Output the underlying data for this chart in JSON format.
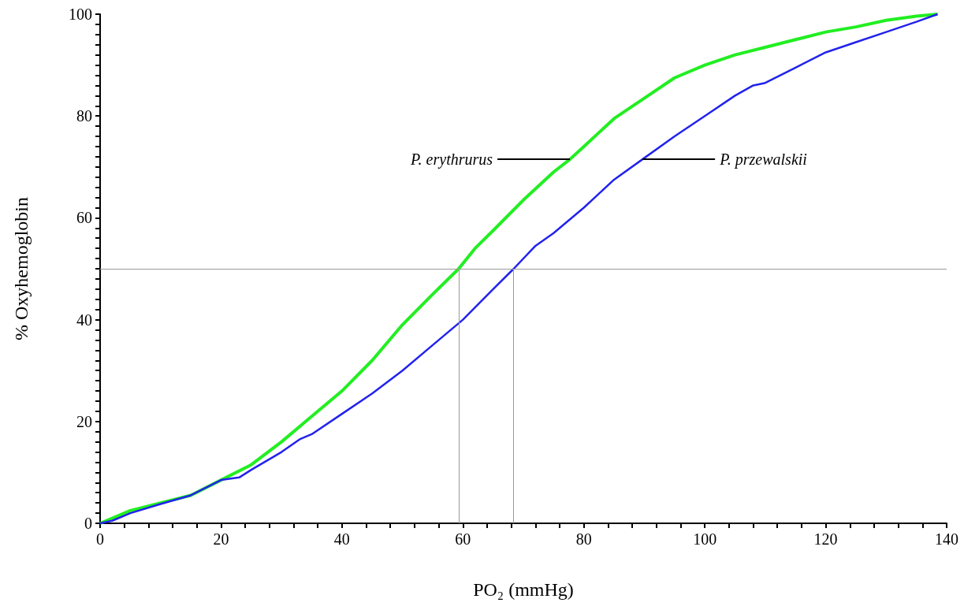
{
  "chart_data": {
    "type": "line",
    "xlabel": "PO₂ (mmHg)",
    "ylabel": "% Oxyhemoglobin",
    "xlim": [
      0,
      140
    ],
    "ylim": [
      0,
      100
    ],
    "xticks": [
      0,
      {
        "value": 4,
        "label": null
      },
      {
        "value": 8,
        "label": null
      },
      {
        "value": 12,
        "label": null
      },
      {
        "value": 16,
        "label": null
      },
      20,
      {
        "value": 24,
        "label": null
      },
      {
        "value": 28,
        "label": null
      },
      {
        "value": 32,
        "label": null
      },
      {
        "value": 36,
        "label": null
      },
      40,
      {
        "value": 44,
        "label": null
      },
      {
        "value": 48,
        "label": null
      },
      {
        "value": 52,
        "label": null
      },
      {
        "value": 56,
        "label": null
      },
      60,
      {
        "value": 64,
        "label": null
      },
      {
        "value": 68,
        "label": null
      },
      {
        "value": 72,
        "label": null
      },
      {
        "value": 76,
        "label": null
      },
      80,
      {
        "value": 84,
        "label": null
      },
      {
        "value": 88,
        "label": null
      },
      {
        "value": 92,
        "label": null
      },
      {
        "value": 96,
        "label": null
      },
      100,
      {
        "value": 104,
        "label": null
      },
      {
        "value": 108,
        "label": null
      },
      {
        "value": 112,
        "label": null
      },
      {
        "value": 116,
        "label": null
      },
      120,
      {
        "value": 124,
        "label": null
      },
      {
        "value": 128,
        "label": null
      },
      {
        "value": 132,
        "label": null
      },
      {
        "value": 136,
        "label": null
      },
      140
    ],
    "yticks": [
      0,
      {
        "value": 2,
        "label": null
      },
      {
        "value": 4,
        "label": null
      },
      {
        "value": 6,
        "label": null
      },
      {
        "value": 8,
        "label": null
      },
      {
        "value": 10,
        "label": null
      },
      {
        "value": 12,
        "label": null
      },
      {
        "value": 14,
        "label": null
      },
      {
        "value": 16,
        "label": null
      },
      {
        "value": 18,
        "label": null
      },
      20,
      {
        "value": 22,
        "label": null
      },
      {
        "value": 24,
        "label": null
      },
      {
        "value": 26,
        "label": null
      },
      {
        "value": 28,
        "label": null
      },
      {
        "value": 30,
        "label": null
      },
      {
        "value": 32,
        "label": null
      },
      {
        "value": 34,
        "label": null
      },
      {
        "value": 36,
        "label": null
      },
      {
        "value": 38,
        "label": null
      },
      40,
      {
        "value": 42,
        "label": null
      },
      {
        "value": 44,
        "label": null
      },
      {
        "value": 46,
        "label": null
      },
      {
        "value": 48,
        "label": null
      },
      {
        "value": 50,
        "label": null
      },
      {
        "value": 52,
        "label": null
      },
      {
        "value": 54,
        "label": null
      },
      {
        "value": 56,
        "label": null
      },
      {
        "value": 58,
        "label": null
      },
      60,
      {
        "value": 62,
        "label": null
      },
      {
        "value": 64,
        "label": null
      },
      {
        "value": 66,
        "label": null
      },
      {
        "value": 68,
        "label": null
      },
      {
        "value": 70,
        "label": null
      },
      {
        "value": 72,
        "label": null
      },
      {
        "value": 74,
        "label": null
      },
      {
        "value": 76,
        "label": null
      },
      {
        "value": 78,
        "label": null
      },
      80,
      {
        "value": 82,
        "label": null
      },
      {
        "value": 84,
        "label": null
      },
      {
        "value": 86,
        "label": null
      },
      {
        "value": 88,
        "label": null
      },
      {
        "value": 90,
        "label": null
      },
      {
        "value": 92,
        "label": null
      },
      {
        "value": 94,
        "label": null
      },
      {
        "value": 96,
        "label": null
      },
      {
        "value": 98,
        "label": null
      },
      100
    ],
    "series": [
      {
        "name": "P. erythrurus",
        "color": "#22ee22",
        "x": [
          0,
          2,
          5,
          10,
          15,
          20,
          25,
          30,
          35,
          40,
          45,
          50,
          55,
          59.3,
          62,
          65,
          70,
          75,
          77.7,
          80,
          85,
          90,
          95,
          100,
          105,
          110,
          115,
          120,
          125,
          130,
          135,
          138.5
        ],
        "values": [
          0,
          1,
          2.5,
          4,
          5.5,
          8.5,
          11.5,
          16,
          21,
          26,
          32,
          39,
          45,
          50,
          54,
          57.5,
          63.5,
          69,
          71.5,
          74,
          79.5,
          83.5,
          87.5,
          90,
          92,
          93.5,
          95,
          96.5,
          97.5,
          98.8,
          99.6,
          100
        ]
      },
      {
        "name": "P. przewalskii",
        "color": "#2222ee",
        "x": [
          0,
          2,
          5,
          10,
          15,
          20,
          23,
          25,
          30,
          33,
          35,
          40,
          45,
          50,
          55,
          60,
          65,
          68.4,
          72,
          75,
          80,
          85,
          89.7,
          95,
          100,
          105,
          108,
          110,
          115,
          120,
          125,
          130,
          135,
          138.5
        ],
        "values": [
          0,
          0.5,
          2,
          3.8,
          5.5,
          8.5,
          9,
          10.5,
          14,
          16.5,
          17.5,
          21.5,
          25.5,
          30,
          35,
          40,
          46,
          50,
          54.5,
          57,
          62,
          67.5,
          71.5,
          76,
          80,
          84,
          86,
          86.5,
          89.5,
          92.5,
          94.5,
          96.5,
          98.5,
          100
        ]
      }
    ],
    "ref_lines": [
      {
        "axis": "y",
        "value": 50,
        "color": "#999999"
      },
      {
        "axis": "x",
        "value": 59.3,
        "color": "#999999"
      },
      {
        "axis": "x",
        "value": 68.4,
        "color": "#999999"
      }
    ]
  }
}
